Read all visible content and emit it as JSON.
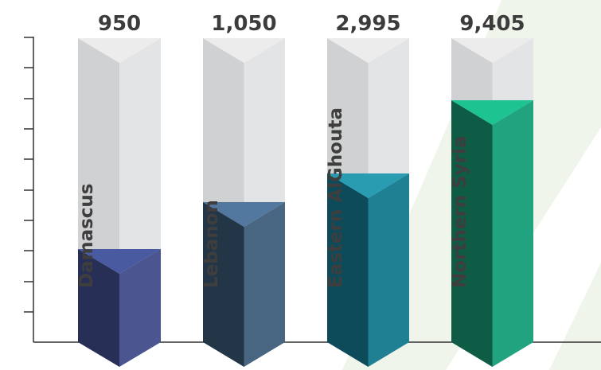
{
  "chart_data": {
    "type": "bar",
    "categories": [
      "Damascus",
      "Lebanon",
      "Eastern AlGhouta",
      "Northern Syria"
    ],
    "values": [
      950,
      1050,
      2995,
      9405
    ],
    "value_labels": [
      "950",
      "1,050",
      "2,995",
      "9,405"
    ],
    "title": "",
    "xlabel": "",
    "ylabel": "",
    "grid": false,
    "legend": "none",
    "colors": {
      "bars": [
        {
          "front": "#272f57",
          "side": "#4b558f",
          "top": "#4a5aa0"
        },
        {
          "front": "#233648",
          "side": "#486681",
          "top": "#5278a0"
        },
        {
          "front": "#0d4a5a",
          "side": "#1f8094",
          "top": "#2a9cb2"
        },
        {
          "front": "#0e5c45",
          "side": "#21a37f",
          "top": "#1dc391"
        }
      ],
      "track_front": "#d0d1d2",
      "track_side": "#e3e4e5",
      "track_top": "#ececed",
      "axis": "#333333",
      "background_stripe": "#f0f5ec"
    }
  }
}
